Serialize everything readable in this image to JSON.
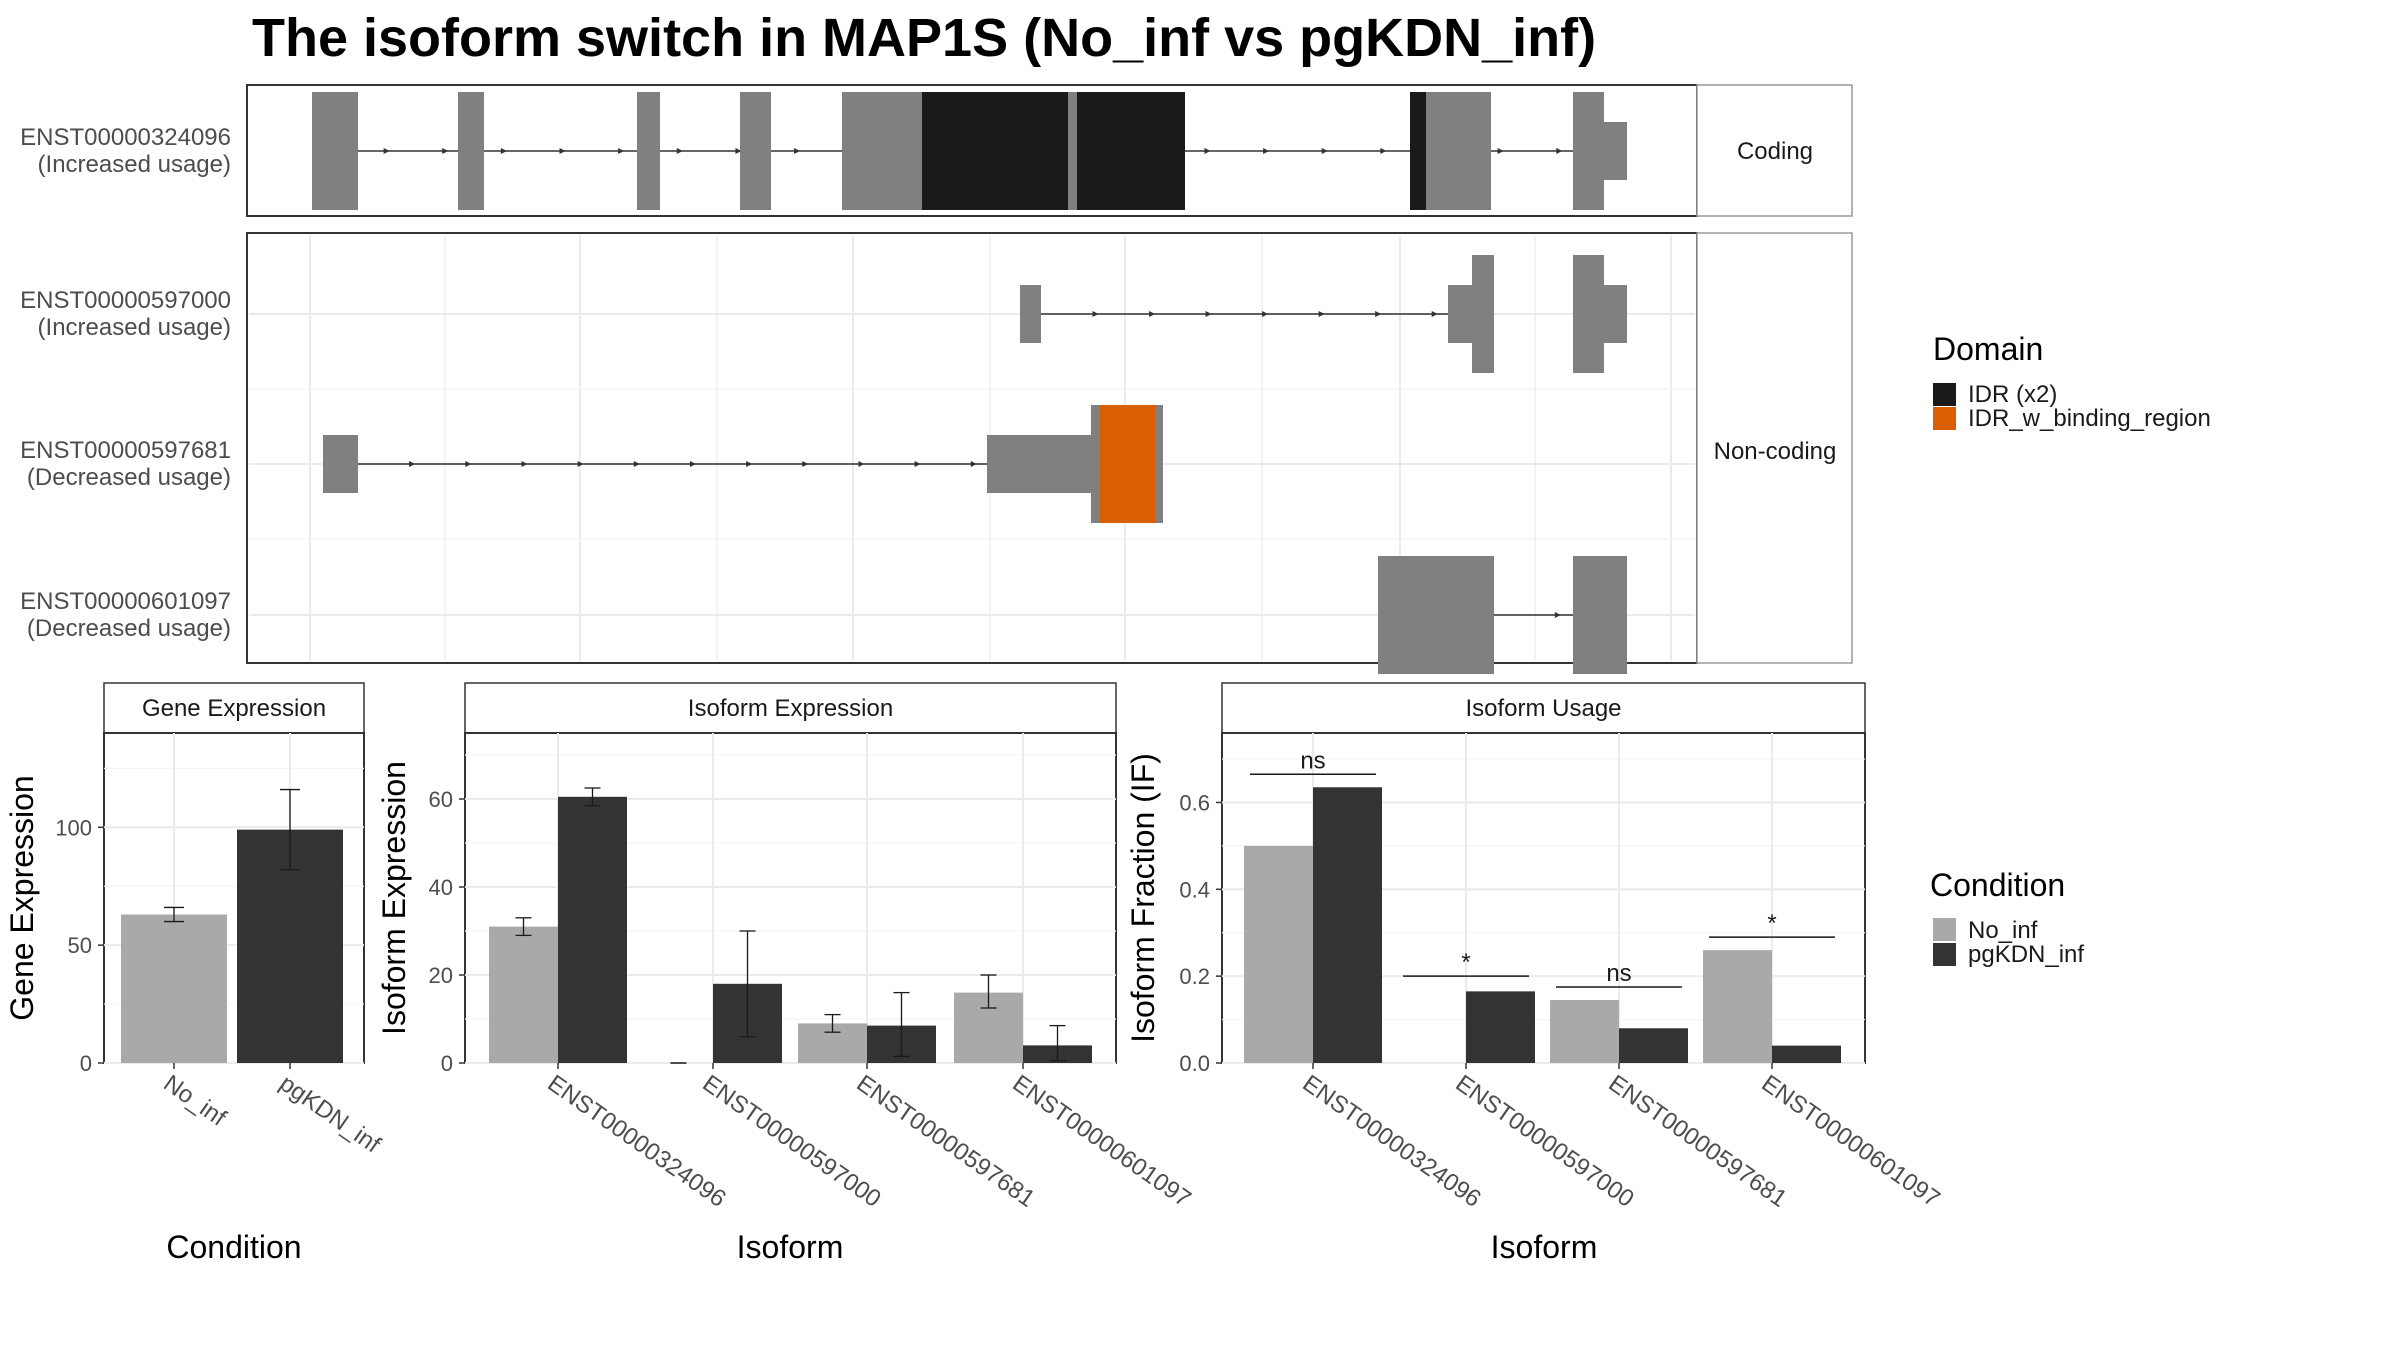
{
  "title": "The isoform switch in MAP1S (No_inf vs pgKDN_inf)",
  "structure": {
    "strip_top": "Coding",
    "strip_bottom": "Non-coding",
    "transcripts": [
      {
        "id": "ENST00000324096",
        "usage": "(Increased usage)",
        "group": "top",
        "row": 0,
        "exons": [
          [
            312,
            330,
            "cds"
          ],
          [
            330,
            358,
            "cds"
          ],
          [
            458,
            484,
            "cds"
          ],
          [
            637,
            660,
            "cds"
          ],
          [
            740,
            771,
            "cds"
          ],
          [
            842,
            922,
            "cds"
          ],
          [
            922,
            1068,
            "idr"
          ],
          [
            1070,
            1077,
            "cds"
          ],
          [
            1077,
            1185,
            "idr"
          ],
          [
            1410,
            1426,
            "idr"
          ],
          [
            1426,
            1491,
            "cds"
          ],
          [
            1573,
            1604,
            "cds"
          ],
          [
            1604,
            1627,
            "utr"
          ]
        ],
        "line": [
          330,
          1573
        ]
      },
      {
        "id": "ENST00000597000",
        "usage": "(Increased usage)",
        "group": "bottom",
        "row": 0,
        "exons": [
          [
            1020,
            1041,
            "utr"
          ],
          [
            1448,
            1472,
            "utr"
          ],
          [
            1472,
            1494,
            "cds"
          ],
          [
            1573,
            1604,
            "cds"
          ],
          [
            1604,
            1627,
            "utr"
          ]
        ],
        "line": [
          1041,
          1448
        ]
      },
      {
        "id": "ENST00000597681",
        "usage": "(Decreased usage)",
        "group": "bottom",
        "row": 1,
        "exons": [
          [
            323,
            358,
            "utr"
          ],
          [
            987,
            1091,
            "utr"
          ],
          [
            1091,
            1100,
            "cds"
          ],
          [
            1100,
            1155,
            "idrbind"
          ],
          [
            1155,
            1163,
            "cds"
          ]
        ],
        "line": [
          358,
          987
        ]
      },
      {
        "id": "ENST00000601097",
        "usage": "(Decreased usage)",
        "group": "bottom",
        "row": 2,
        "exons": [
          [
            1378,
            1494,
            "cds"
          ],
          [
            1573,
            1627,
            "cds"
          ]
        ],
        "line": [
          1494,
          1573
        ]
      }
    ]
  },
  "legends": {
    "domain_title": "Domain",
    "domain_items": [
      {
        "label": "IDR (x2)",
        "color": "#1a1a1a"
      },
      {
        "label": "IDR_w_binding_region",
        "color": "#d95f02"
      }
    ],
    "condition_title": "Condition",
    "condition_items": [
      {
        "label": "No_inf",
        "color": "#a9a9a9"
      },
      {
        "label": "pgKDN_inf",
        "color": "#333333"
      }
    ]
  },
  "colors": {
    "exon": "#808080",
    "idr": "#1a1a1a",
    "idr_binding": "#d95f02",
    "no_inf": "#a9a9a9",
    "pgkdn_inf": "#333333"
  },
  "chart_data": [
    {
      "type": "bar",
      "title": "Gene Expression",
      "xlabel": "Condition",
      "ylabel": "Gene Expression",
      "ylim": [
        0,
        140
      ],
      "yticks": [
        0,
        50,
        100
      ],
      "categories": [
        "No_inf",
        "pgKDN_inf"
      ],
      "values": [
        63,
        99
      ],
      "err_low": [
        60,
        82
      ],
      "err_high": [
        66,
        116
      ]
    },
    {
      "type": "bar",
      "title": "Isoform Expression",
      "xlabel": "Isoform",
      "ylabel": "Isoform Expression",
      "ylim": [
        0,
        75
      ],
      "yticks": [
        0,
        20,
        40,
        60
      ],
      "categories": [
        "ENST00000324096",
        "ENST00000597000",
        "ENST00000597681",
        "ENST00000601097"
      ],
      "series": [
        {
          "name": "No_inf",
          "values": [
            31,
            0,
            9,
            16
          ],
          "err_low": [
            29,
            0,
            7,
            12.5
          ],
          "err_high": [
            33,
            0,
            11,
            20
          ]
        },
        {
          "name": "pgKDN_inf",
          "values": [
            60.5,
            18,
            8.5,
            4
          ],
          "err_low": [
            58.5,
            6,
            1.5,
            0.5
          ],
          "err_high": [
            62.5,
            30,
            16,
            8.5
          ]
        }
      ]
    },
    {
      "type": "bar",
      "title": "Isoform Usage",
      "xlabel": "Isoform",
      "ylabel": "Isoform Fraction (IF)",
      "ylim": [
        0,
        0.76
      ],
      "yticks": [
        "0.0",
        "0.2",
        "0.4",
        "0.6"
      ],
      "categories": [
        "ENST00000324096",
        "ENST00000597000",
        "ENST00000597681",
        "ENST00000601097"
      ],
      "series": [
        {
          "name": "No_inf",
          "values": [
            0.5,
            0,
            0.145,
            0.26
          ]
        },
        {
          "name": "pgKDN_inf",
          "values": [
            0.635,
            0.165,
            0.08,
            0.04
          ]
        }
      ],
      "significance": [
        {
          "label": "ns",
          "y": 0.665
        },
        {
          "label": "*",
          "y": 0.2
        },
        {
          "label": "ns",
          "y": 0.175
        },
        {
          "label": "*",
          "y": 0.29
        }
      ]
    }
  ]
}
